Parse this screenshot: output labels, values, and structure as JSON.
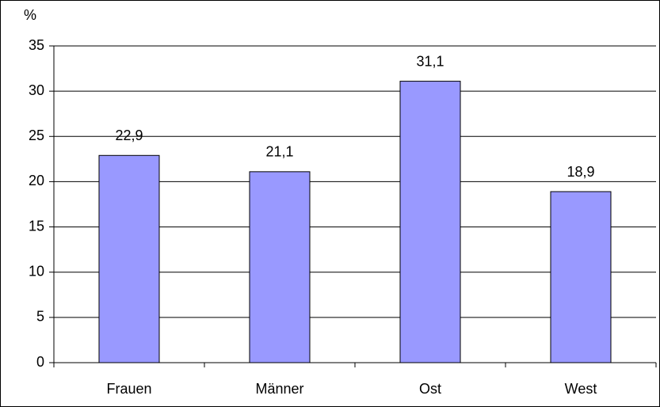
{
  "chart_data": {
    "type": "bar",
    "y_label": "%",
    "categories": [
      "Frauen",
      "Männer",
      "Ost",
      "West"
    ],
    "values": [
      22.9,
      21.1,
      31.1,
      18.9
    ],
    "value_labels": [
      "22,9",
      "21,1",
      "31,1",
      "18,9"
    ],
    "color": "#9999ff",
    "ylim": [
      0,
      35
    ],
    "yticks": [
      0,
      5,
      10,
      15,
      20,
      25,
      30,
      35
    ],
    "grid": true
  }
}
